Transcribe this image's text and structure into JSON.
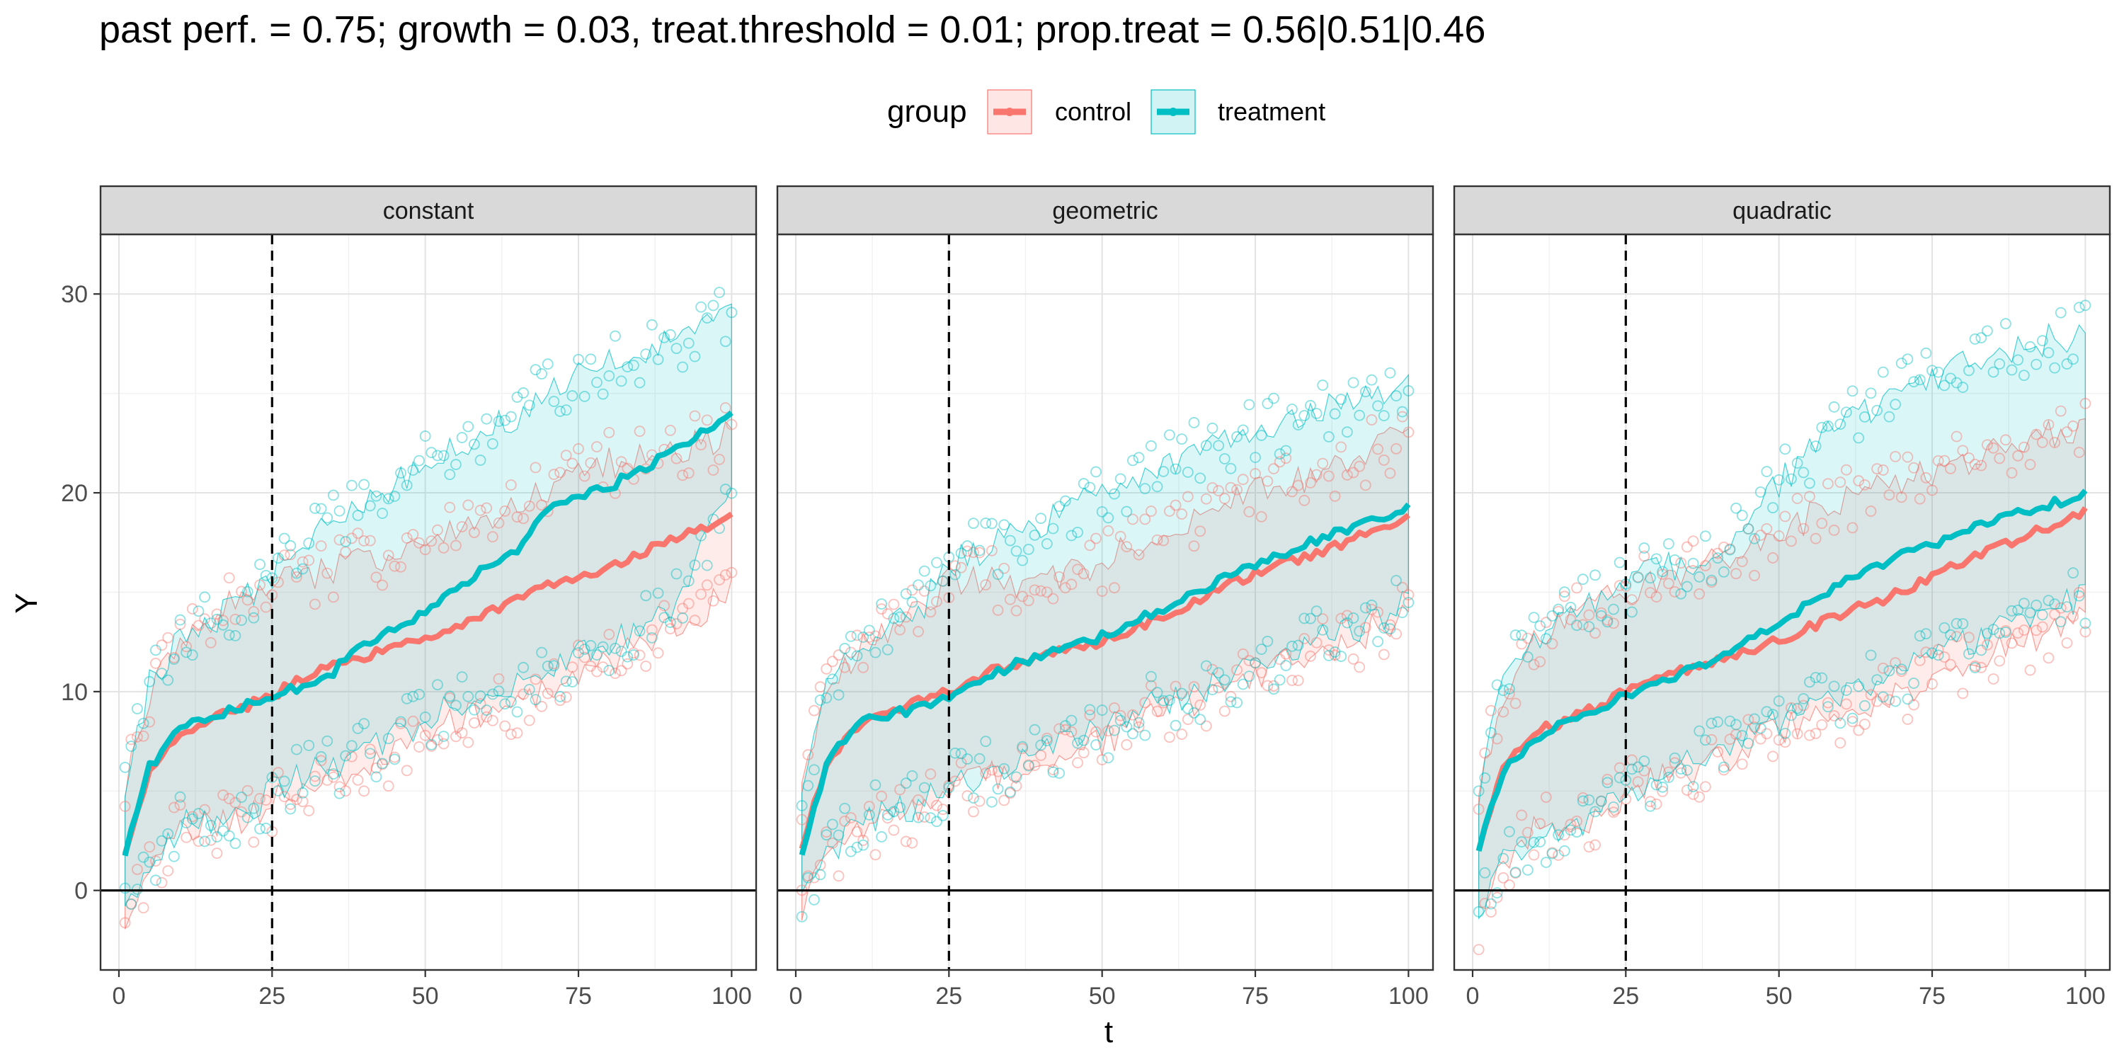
{
  "chart_data": {
    "type": "line",
    "title": "past perf. = 0.75; growth = 0.03,  treat.threshold = 0.01;  prop.treat = 0.56|0.51|0.46",
    "xlabel": "t",
    "ylabel": "Y",
    "xlim": [
      -3,
      104
    ],
    "ylim": [
      -4,
      33
    ],
    "x_ticks": [
      0,
      25,
      50,
      75,
      100
    ],
    "y_ticks": [
      0,
      10,
      20,
      30
    ],
    "x_tick_labels": [
      "0",
      "25",
      "50",
      "75",
      "100"
    ],
    "y_tick_labels": [
      "0",
      "10",
      "20",
      "30"
    ],
    "vline_x": 25,
    "hline_y": 0,
    "grid": true,
    "legend": {
      "title": "group",
      "position": "top",
      "entries": [
        {
          "name": "control",
          "color": "#F8766D"
        },
        {
          "name": "treatment",
          "color": "#00BFC4"
        }
      ]
    },
    "panels": [
      {
        "name": "constant",
        "series": [
          {
            "name": "control",
            "mean": [
              [
                1,
                1.8
              ],
              [
                5,
                6.0
              ],
              [
                10,
                8.0
              ],
              [
                20,
                9.2
              ],
              [
                25,
                9.8
              ],
              [
                30,
                10.7
              ],
              [
                40,
                11.8
              ],
              [
                50,
                12.6
              ],
              [
                60,
                14.0
              ],
              [
                70,
                15.3
              ],
              [
                80,
                16.2
              ],
              [
                90,
                17.6
              ],
              [
                100,
                18.8
              ]
            ],
            "band_low": [
              [
                1,
                -1.5
              ],
              [
                5,
                1.0
              ],
              [
                10,
                3.0
              ],
              [
                20,
                3.5
              ],
              [
                25,
                4.5
              ],
              [
                40,
                6.0
              ],
              [
                50,
                8.0
              ],
              [
                60,
                9.0
              ],
              [
                70,
                10.0
              ],
              [
                80,
                11.5
              ],
              [
                90,
                13.0
              ],
              [
                100,
                15.0
              ]
            ],
            "band_high": [
              [
                1,
                5.0
              ],
              [
                5,
                10.0
              ],
              [
                10,
                12.0
              ],
              [
                20,
                15.0
              ],
              [
                25,
                15.5
              ],
              [
                40,
                16.5
              ],
              [
                50,
                17.5
              ],
              [
                60,
                18.5
              ],
              [
                70,
                20.0
              ],
              [
                80,
                21.5
              ],
              [
                90,
                22.0
              ],
              [
                100,
                23.0
              ]
            ]
          },
          {
            "name": "treatment",
            "mean": [
              [
                1,
                1.7
              ],
              [
                5,
                6.2
              ],
              [
                10,
                8.3
              ],
              [
                20,
                9.2
              ],
              [
                25,
                9.7
              ],
              [
                30,
                10.3
              ],
              [
                35,
                11.0
              ],
              [
                40,
                12.5
              ],
              [
                50,
                13.9
              ],
              [
                60,
                16.3
              ],
              [
                65,
                17.2
              ],
              [
                70,
                19.3
              ],
              [
                80,
                20.3
              ],
              [
                90,
                22.0
              ],
              [
                100,
                24.0
              ]
            ],
            "band_low": [
              [
                1,
                -1.2
              ],
              [
                5,
                1.5
              ],
              [
                10,
                3.3
              ],
              [
                20,
                3.5
              ],
              [
                25,
                5.0
              ],
              [
                40,
                7.0
              ],
              [
                50,
                8.5
              ],
              [
                60,
                10.0
              ],
              [
                70,
                11.0
              ],
              [
                80,
                12.5
              ],
              [
                90,
                14.0
              ],
              [
                100,
                20.0
              ]
            ],
            "band_high": [
              [
                1,
                4.8
              ],
              [
                5,
                10.5
              ],
              [
                10,
                12.5
              ],
              [
                20,
                14.5
              ],
              [
                25,
                16.0
              ],
              [
                30,
                17.5
              ],
              [
                40,
                19.5
              ],
              [
                50,
                21.5
              ],
              [
                60,
                23.0
              ],
              [
                70,
                25.0
              ],
              [
                80,
                26.5
              ],
              [
                90,
                27.5
              ],
              [
                100,
                29.0
              ]
            ]
          }
        ]
      },
      {
        "name": "geometric",
        "series": [
          {
            "name": "control",
            "mean": [
              [
                1,
                2.0
              ],
              [
                5,
                6.5
              ],
              [
                10,
                8.2
              ],
              [
                20,
                9.5
              ],
              [
                25,
                10.0
              ],
              [
                30,
                10.8
              ],
              [
                40,
                11.8
              ],
              [
                50,
                12.5
              ],
              [
                60,
                13.8
              ],
              [
                70,
                15.3
              ],
              [
                80,
                16.5
              ],
              [
                90,
                17.5
              ],
              [
                100,
                18.8
              ]
            ],
            "band_low": [
              [
                1,
                -0.8
              ],
              [
                5,
                1.5
              ],
              [
                10,
                3.0
              ],
              [
                20,
                4.0
              ],
              [
                25,
                5.0
              ],
              [
                40,
                6.5
              ],
              [
                50,
                7.5
              ],
              [
                60,
                9.0
              ],
              [
                70,
                10.0
              ],
              [
                80,
                11.5
              ],
              [
                90,
                12.5
              ],
              [
                100,
                14.0
              ]
            ],
            "band_high": [
              [
                1,
                5.0
              ],
              [
                5,
                10.5
              ],
              [
                10,
                12.0
              ],
              [
                20,
                14.0
              ],
              [
                25,
                15.5
              ],
              [
                40,
                15.5
              ],
              [
                50,
                16.5
              ],
              [
                60,
                18.0
              ],
              [
                70,
                19.5
              ],
              [
                80,
                20.5
              ],
              [
                90,
                21.5
              ],
              [
                100,
                23.0
              ]
            ]
          },
          {
            "name": "treatment",
            "mean": [
              [
                1,
                1.8
              ],
              [
                5,
                6.3
              ],
              [
                10,
                8.4
              ],
              [
                20,
                9.2
              ],
              [
                25,
                9.6
              ],
              [
                30,
                10.6
              ],
              [
                40,
                11.9
              ],
              [
                50,
                12.8
              ],
              [
                60,
                14.2
              ],
              [
                70,
                15.7
              ],
              [
                80,
                17.0
              ],
              [
                90,
                18.2
              ],
              [
                100,
                19.3
              ]
            ],
            "band_low": [
              [
                1,
                -0.5
              ],
              [
                5,
                1.5
              ],
              [
                10,
                3.5
              ],
              [
                20,
                4.3
              ],
              [
                25,
                5.2
              ],
              [
                40,
                7.0
              ],
              [
                50,
                8.0
              ],
              [
                60,
                9.5
              ],
              [
                70,
                10.5
              ],
              [
                80,
                12.0
              ],
              [
                90,
                13.0
              ],
              [
                100,
                14.5
              ]
            ],
            "band_high": [
              [
                1,
                4.8
              ],
              [
                5,
                10.5
              ],
              [
                10,
                12.5
              ],
              [
                20,
                14.0
              ],
              [
                25,
                16.5
              ],
              [
                30,
                17.0
              ],
              [
                40,
                18.5
              ],
              [
                50,
                20.0
              ],
              [
                60,
                21.5
              ],
              [
                70,
                22.5
              ],
              [
                80,
                23.5
              ],
              [
                90,
                24.5
              ],
              [
                100,
                25.5
              ]
            ]
          }
        ]
      },
      {
        "name": "quadratic",
        "series": [
          {
            "name": "control",
            "mean": [
              [
                1,
                1.9
              ],
              [
                5,
                6.2
              ],
              [
                10,
                7.9
              ],
              [
                20,
                9.2
              ],
              [
                25,
                10.0
              ],
              [
                30,
                10.6
              ],
              [
                40,
                11.6
              ],
              [
                50,
                12.6
              ],
              [
                60,
                13.9
              ],
              [
                70,
                15.0
              ],
              [
                80,
                16.5
              ],
              [
                90,
                17.8
              ],
              [
                100,
                19.0
              ]
            ],
            "band_low": [
              [
                1,
                -1.5
              ],
              [
                5,
                1.5
              ],
              [
                10,
                3.0
              ],
              [
                20,
                3.5
              ],
              [
                25,
                5.0
              ],
              [
                40,
                6.5
              ],
              [
                50,
                8.0
              ],
              [
                60,
                9.0
              ],
              [
                70,
                10.0
              ],
              [
                80,
                11.5
              ],
              [
                90,
                12.5
              ],
              [
                100,
                14.0
              ]
            ],
            "band_high": [
              [
                1,
                5.0
              ],
              [
                5,
                10.0
              ],
              [
                10,
                12.5
              ],
              [
                20,
                14.5
              ],
              [
                25,
                15.0
              ],
              [
                40,
                16.5
              ],
              [
                50,
                18.0
              ],
              [
                60,
                19.5
              ],
              [
                70,
                20.5
              ],
              [
                80,
                21.5
              ],
              [
                90,
                22.5
              ],
              [
                100,
                23.5
              ]
            ]
          },
          {
            "name": "treatment",
            "mean": [
              [
                1,
                2.1
              ],
              [
                5,
                6.0
              ],
              [
                10,
                7.7
              ],
              [
                20,
                9.0
              ],
              [
                25,
                9.8
              ],
              [
                30,
                10.3
              ],
              [
                40,
                11.8
              ],
              [
                50,
                13.5
              ],
              [
                60,
                15.5
              ],
              [
                70,
                16.8
              ],
              [
                80,
                18.0
              ],
              [
                90,
                19.0
              ],
              [
                100,
                20.0
              ]
            ],
            "band_low": [
              [
                1,
                -1.0
              ],
              [
                5,
                1.5
              ],
              [
                10,
                2.8
              ],
              [
                20,
                3.5
              ],
              [
                25,
                5.0
              ],
              [
                40,
                7.0
              ],
              [
                50,
                8.5
              ],
              [
                60,
                10.0
              ],
              [
                70,
                11.0
              ],
              [
                80,
                12.5
              ],
              [
                90,
                13.5
              ],
              [
                100,
                14.8
              ]
            ],
            "band_high": [
              [
                1,
                5.0
              ],
              [
                5,
                10.5
              ],
              [
                10,
                12.5
              ],
              [
                20,
                14.5
              ],
              [
                25,
                15.5
              ],
              [
                40,
                17.0
              ],
              [
                50,
                20.5
              ],
              [
                60,
                23.5
              ],
              [
                70,
                25.0
              ],
              [
                80,
                26.5
              ],
              [
                90,
                27.5
              ],
              [
                100,
                28.0
              ]
            ]
          }
        ]
      }
    ]
  }
}
